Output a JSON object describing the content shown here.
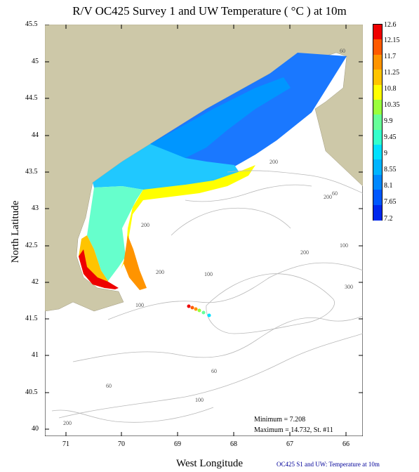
{
  "title": "R/V OC425 Survey 1 and UW Temperature ( °C ) at 10m",
  "axes": {
    "xlabel": "West Longitude",
    "ylabel": "North Latitude",
    "x_ticks": [
      "71",
      "70",
      "69",
      "68",
      "67",
      "66"
    ],
    "y_ticks": [
      "45.5",
      "45",
      "44.5",
      "44",
      "43.5",
      "43",
      "42.5",
      "42",
      "41.5",
      "41",
      "40.5",
      "40"
    ]
  },
  "colorbar": {
    "labels": [
      "12.6",
      "12.15",
      "11.7",
      "11.25",
      "10.8",
      "10.35",
      "9.9",
      "9.45",
      "9",
      "8.55",
      "8.1",
      "7.65",
      "7.2"
    ],
    "colors": [
      "#ee0000",
      "#ff5a00",
      "#ff9400",
      "#ffc400",
      "#ffff00",
      "#9aff3c",
      "#66ff99",
      "#33ffcc",
      "#00e0ff",
      "#00b4ff",
      "#0088ff",
      "#0058ff",
      "#0028ee"
    ]
  },
  "stats": {
    "minimum": "Minimum = 7.208",
    "maximum": "Maximum = 14.732, St. #11"
  },
  "caption": "OC425  S1 and UW: Temperature at 10m",
  "map": {
    "land_color": "#cdc8a8",
    "contour_labels": [
      "60",
      "200",
      "200",
      "60",
      "200",
      "100",
      "200",
      "200",
      "100",
      "300",
      "100",
      "60",
      "60",
      "100",
      "200"
    ]
  }
}
